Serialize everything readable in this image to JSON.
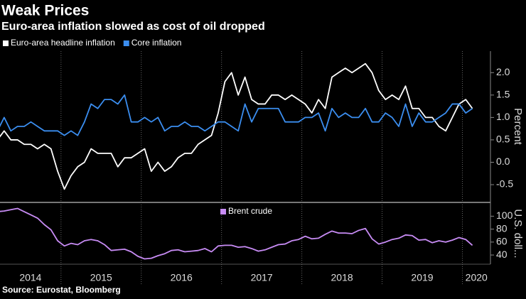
{
  "source": "Source: Eurostat, Bloomberg",
  "chart_data": [
    {
      "type": "line",
      "title": "Weak Prices",
      "subtitle": "Euro-area inflation slowed as cost of oil dropped",
      "ylabel": "Percent",
      "legend": "top-left",
      "grid": false,
      "xlim": [
        2014.24,
        2020.35
      ],
      "ylim": [
        -0.88,
        2.48
      ],
      "yticks": [
        {
          "value": 2.0,
          "label": "2.0"
        },
        1.5,
        {
          "value": 1.0,
          "label": "1.0"
        },
        0.5,
        {
          "value": 0.0,
          "label": "0.0"
        },
        -0.5
      ],
      "x": [
        2014.208,
        2014.292,
        2014.375,
        2014.458,
        2014.542,
        2014.625,
        2014.708,
        2014.792,
        2014.875,
        2014.958,
        2015.042,
        2015.125,
        2015.208,
        2015.292,
        2015.375,
        2015.458,
        2015.542,
        2015.625,
        2015.708,
        2015.792,
        2015.875,
        2015.958,
        2016.042,
        2016.125,
        2016.208,
        2016.292,
        2016.375,
        2016.458,
        2016.542,
        2016.625,
        2016.708,
        2016.792,
        2016.875,
        2016.958,
        2017.042,
        2017.125,
        2017.208,
        2017.292,
        2017.375,
        2017.458,
        2017.542,
        2017.625,
        2017.708,
        2017.792,
        2017.875,
        2017.958,
        2018.042,
        2018.125,
        2018.208,
        2018.292,
        2018.375,
        2018.458,
        2018.542,
        2018.625,
        2018.708,
        2018.792,
        2018.875,
        2018.958,
        2019.042,
        2019.125,
        2019.208,
        2019.292,
        2019.375,
        2019.458,
        2019.542,
        2019.625,
        2019.708,
        2019.792,
        2019.875,
        2019.958,
        2020.042,
        2020.125
      ],
      "series": [
        {
          "name": "Euro-area headline inflation",
          "color": "#ffffff",
          "values": [
            0.5,
            0.7,
            0.5,
            0.5,
            0.4,
            0.4,
            0.3,
            0.4,
            0.3,
            -0.2,
            -0.6,
            -0.3,
            -0.1,
            0.0,
            0.3,
            0.2,
            0.2,
            0.2,
            -0.1,
            0.1,
            0.1,
            0.2,
            0.3,
            -0.2,
            0.0,
            -0.2,
            -0.1,
            0.1,
            0.2,
            0.2,
            0.4,
            0.5,
            0.6,
            1.1,
            1.8,
            2.0,
            1.5,
            1.9,
            1.4,
            1.3,
            1.3,
            1.5,
            1.5,
            1.4,
            1.5,
            1.4,
            1.3,
            1.1,
            1.4,
            1.2,
            1.9,
            2.0,
            2.1,
            2.0,
            2.1,
            2.2,
            2.0,
            1.6,
            1.4,
            1.5,
            1.4,
            1.7,
            1.2,
            1.2,
            1.0,
            1.0,
            0.8,
            0.7,
            1.0,
            1.3,
            1.4,
            1.2
          ]
        },
        {
          "name": "Core inflation",
          "color": "#3b8ef0",
          "values": [
            0.7,
            1.0,
            0.7,
            0.8,
            0.8,
            0.9,
            0.8,
            0.7,
            0.7,
            0.7,
            0.6,
            0.7,
            0.6,
            0.9,
            1.3,
            1.2,
            1.4,
            1.4,
            1.3,
            1.5,
            0.9,
            0.9,
            1.0,
            0.9,
            1.0,
            0.7,
            0.8,
            0.8,
            0.9,
            0.8,
            0.8,
            0.7,
            0.8,
            0.9,
            0.9,
            0.8,
            0.7,
            1.3,
            0.9,
            1.2,
            1.2,
            1.2,
            1.2,
            0.9,
            0.9,
            0.9,
            1.0,
            1.0,
            1.1,
            0.7,
            1.2,
            1.0,
            1.1,
            1.0,
            1.0,
            1.2,
            0.9,
            0.9,
            1.1,
            1.0,
            0.8,
            1.3,
            0.8,
            1.1,
            0.9,
            0.9,
            1.0,
            1.1,
            1.3,
            1.3,
            1.1,
            1.2
          ]
        }
      ]
    },
    {
      "type": "line",
      "ylabel": "U.S. doll...",
      "legend": "top-center",
      "grid": false,
      "xlim": [
        2014.24,
        2020.35
      ],
      "ylim": [
        28,
        118
      ],
      "xticks": [
        2014,
        2015,
        2016,
        2017,
        2018,
        2019,
        2020
      ],
      "yticks": [
        100,
        80,
        60,
        40
      ],
      "x": [
        2014.208,
        2014.292,
        2014.375,
        2014.458,
        2014.542,
        2014.625,
        2014.708,
        2014.792,
        2014.875,
        2014.958,
        2015.042,
        2015.125,
        2015.208,
        2015.292,
        2015.375,
        2015.458,
        2015.542,
        2015.625,
        2015.708,
        2015.792,
        2015.875,
        2015.958,
        2016.042,
        2016.125,
        2016.208,
        2016.292,
        2016.375,
        2016.458,
        2016.542,
        2016.625,
        2016.708,
        2016.792,
        2016.875,
        2016.958,
        2017.042,
        2017.125,
        2017.208,
        2017.292,
        2017.375,
        2017.458,
        2017.542,
        2017.625,
        2017.708,
        2017.792,
        2017.875,
        2017.958,
        2018.042,
        2018.125,
        2018.208,
        2018.292,
        2018.375,
        2018.458,
        2018.542,
        2018.625,
        2018.708,
        2018.792,
        2018.875,
        2018.958,
        2019.042,
        2019.125,
        2019.208,
        2019.292,
        2019.375,
        2019.458,
        2019.542,
        2019.625,
        2019.708,
        2019.792,
        2019.875,
        2019.958,
        2020.042,
        2020.125
      ],
      "series": [
        {
          "name": "Brent crude",
          "color": "#c88cf5",
          "values": [
            107,
            108,
            110,
            112,
            107,
            102,
            97,
            87,
            79,
            62,
            54,
            58,
            56,
            62,
            64,
            62,
            56,
            47,
            48,
            49,
            45,
            38,
            34,
            35,
            39,
            42,
            47,
            48,
            45,
            46,
            47,
            50,
            45,
            54,
            55,
            55,
            52,
            53,
            50,
            46,
            48,
            52,
            56,
            57,
            62,
            64,
            69,
            65,
            66,
            72,
            77,
            74,
            74,
            73,
            78,
            81,
            65,
            57,
            60,
            64,
            66,
            71,
            70,
            63,
            64,
            59,
            62,
            60,
            63,
            67,
            64,
            55
          ]
        }
      ]
    }
  ]
}
